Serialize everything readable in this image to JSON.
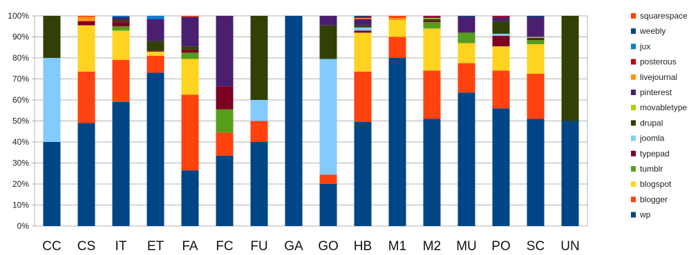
{
  "chart_data": {
    "type": "bar",
    "stacked": true,
    "normalized_percent": true,
    "title": "",
    "xlabel": "",
    "ylabel": "",
    "ylim": [
      0,
      100
    ],
    "y_ticks": [
      "0%",
      "10%",
      "20%",
      "30%",
      "40%",
      "50%",
      "60%",
      "70%",
      "80%",
      "90%",
      "100%"
    ],
    "grid": true,
    "legend_position": "right",
    "categories": [
      "CC",
      "CS",
      "IT",
      "ET",
      "FA",
      "FC",
      "FU",
      "GA",
      "GO",
      "HB",
      "M1",
      "M2",
      "MU",
      "PO",
      "SC",
      "UN"
    ],
    "series": [
      {
        "name": "wp",
        "color": "#004586",
        "values": [
          40,
          49,
          59,
          73,
          26.5,
          33.5,
          40,
          100,
          20,
          49.5,
          80,
          51,
          63.5,
          56,
          51,
          50
        ]
      },
      {
        "name": "blogger",
        "color": "#ff420e",
        "values": [
          0,
          24.5,
          20,
          8,
          36,
          11,
          10,
          0,
          4.5,
          24,
          10,
          23,
          14,
          18,
          21.5,
          0
        ]
      },
      {
        "name": "blogspot",
        "color": "#ffd320",
        "values": [
          0,
          22,
          14,
          2,
          17,
          0,
          0,
          0,
          0,
          18.5,
          8,
          20,
          9.5,
          11.5,
          14,
          0
        ]
      },
      {
        "name": "tumblr",
        "color": "#579d1c",
        "values": [
          0,
          0,
          2,
          0,
          3,
          11,
          0,
          0,
          0,
          0,
          0,
          3,
          5,
          0,
          2,
          0
        ]
      },
      {
        "name": "typepad",
        "color": "#7e0021",
        "values": [
          0,
          2,
          2,
          0.5,
          1.5,
          11,
          0,
          0,
          0,
          1,
          0,
          0.5,
          0,
          5,
          0.5,
          0
        ]
      },
      {
        "name": "joomla",
        "color": "#83caff",
        "values": [
          40,
          0,
          0,
          0,
          0,
          0,
          10,
          0,
          55,
          1.5,
          0,
          0,
          0,
          1,
          0,
          0
        ]
      },
      {
        "name": "drupal",
        "color": "#314004",
        "values": [
          20,
          0,
          1,
          4.5,
          1.5,
          0,
          40,
          0,
          16,
          1,
          0,
          1,
          0,
          6,
          0.5,
          50
        ]
      },
      {
        "name": "movabletype",
        "color": "#aecf00",
        "values": [
          0,
          0,
          0,
          0,
          0,
          0,
          0,
          0,
          0,
          0,
          0,
          0.5,
          0,
          0,
          0.5,
          0
        ]
      },
      {
        "name": "pinterest",
        "color": "#4b1f6f",
        "values": [
          0,
          0,
          1.5,
          10.5,
          14,
          33.5,
          0,
          0,
          4.5,
          3,
          0,
          0.5,
          7.5,
          2,
          9.5,
          0
        ]
      },
      {
        "name": "livejournal",
        "color": "#ff950e",
        "values": [
          0,
          2,
          0,
          0,
          0,
          0,
          0,
          0,
          0,
          0.5,
          1,
          0,
          0,
          0,
          0,
          0
        ]
      },
      {
        "name": "posterous",
        "color": "#c5000b",
        "values": [
          0,
          0,
          0,
          0,
          0,
          0,
          0,
          0,
          0,
          0.5,
          0,
          0.5,
          0,
          0.5,
          0,
          0
        ]
      },
      {
        "name": "jux",
        "color": "#0084d1",
        "values": [
          0,
          0,
          0.5,
          1.5,
          0,
          0,
          0,
          0,
          0,
          0,
          0,
          0,
          0,
          0,
          0,
          0
        ]
      },
      {
        "name": "weebly",
        "color": "#004586",
        "values": [
          0,
          0,
          0,
          0,
          0,
          0,
          0,
          0,
          0,
          0.5,
          0,
          0,
          0.5,
          0,
          0.5,
          0
        ]
      },
      {
        "name": "squarespace",
        "color": "#ff420e",
        "values": [
          0,
          0.5,
          0,
          0,
          0.5,
          0,
          0,
          0,
          0,
          0,
          1,
          0,
          0,
          0,
          0,
          0
        ]
      }
    ],
    "legend": [
      "squarespace",
      "weebly",
      "jux",
      "posterous",
      "livejournal",
      "pinterest",
      "movabletype",
      "drupal",
      "joomla",
      "typepad",
      "tumblr",
      "blogspot",
      "blogger",
      "wp"
    ]
  }
}
